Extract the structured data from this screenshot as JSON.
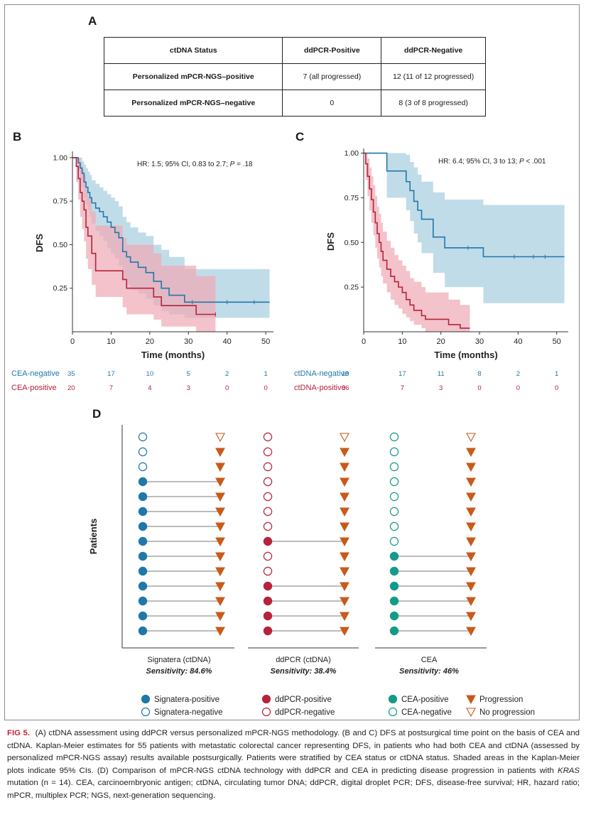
{
  "panels": {
    "a": "A",
    "b": "B",
    "c": "C",
    "d": "D"
  },
  "table": {
    "headers": [
      "ctDNA Status",
      "ddPCR-Positive",
      "ddPCR-Negative"
    ],
    "rows": [
      [
        "Personalized mPCR-NGS–positive",
        "7 (all progressed)",
        "12 (11 of 12 progressed)"
      ],
      [
        "Personalized mPCR-NGS–negative",
        "0",
        "8 (3 of 8 progressed)"
      ]
    ]
  },
  "colors": {
    "blue": "#1f78a8",
    "red": "#b8223a",
    "teal": "#159a8a",
    "blue_band": "#a9cfe0",
    "red_band": "#eeaab5",
    "orange": "#c85a1a"
  },
  "chart_data": [
    {
      "type": "line",
      "title": "",
      "annotation": "HR: 1.5; 95% CI, 0.83 to 2.7; P = .18",
      "annotation_prefix": "HR: 1.5; 95% CI, 0.83 to 2.7; ",
      "annotation_p": "P",
      "annotation_suffix": " = .18",
      "xlabel": "Time (months)",
      "ylabel": "DFS",
      "xlim": [
        0,
        52
      ],
      "ylim": [
        0,
        1.02
      ],
      "xticks": [
        0,
        10,
        20,
        30,
        40,
        50
      ],
      "yticks": [
        0.25,
        0.5,
        0.75,
        1.0
      ],
      "ytick_labels": [
        "0.25",
        "0.50",
        "0.75",
        "1.00"
      ],
      "series": [
        {
          "name": "CEA-negative",
          "color": "#1f78a8",
          "x": [
            0,
            1.5,
            2,
            2.5,
            3,
            3.5,
            4,
            4.5,
            5,
            6,
            7,
            8,
            9,
            10,
            11,
            12,
            13,
            14,
            15,
            17,
            19,
            21,
            23,
            25,
            29,
            51
          ],
          "y": [
            1.0,
            0.97,
            0.94,
            0.91,
            0.86,
            0.83,
            0.8,
            0.77,
            0.74,
            0.71,
            0.69,
            0.66,
            0.63,
            0.6,
            0.57,
            0.54,
            0.46,
            0.43,
            0.4,
            0.37,
            0.34,
            0.29,
            0.25,
            0.21,
            0.17,
            0.17
          ],
          "lower": [
            1.0,
            0.92,
            0.87,
            0.83,
            0.77,
            0.73,
            0.7,
            0.66,
            0.62,
            0.58,
            0.55,
            0.52,
            0.48,
            0.45,
            0.42,
            0.38,
            0.3,
            0.27,
            0.24,
            0.22,
            0.19,
            0.15,
            0.12,
            0.1,
            0.08,
            0.08
          ],
          "upper": [
            1.0,
            1.0,
            1.0,
            0.98,
            0.96,
            0.94,
            0.92,
            0.9,
            0.87,
            0.85,
            0.83,
            0.81,
            0.79,
            0.77,
            0.75,
            0.72,
            0.66,
            0.63,
            0.6,
            0.57,
            0.55,
            0.5,
            0.47,
            0.43,
            0.36,
            0.36
          ],
          "censor_x": [
            31,
            40,
            47
          ]
        },
        {
          "name": "CEA-positive",
          "color": "#b8223a",
          "x": [
            0,
            1,
            1.5,
            2,
            2.5,
            3,
            3.5,
            4,
            5,
            6,
            11,
            13,
            14,
            15,
            20,
            21,
            23,
            25,
            27,
            32,
            37
          ],
          "y": [
            1.0,
            0.95,
            0.88,
            0.8,
            0.75,
            0.7,
            0.6,
            0.55,
            0.45,
            0.35,
            0.35,
            0.3,
            0.25,
            0.25,
            0.25,
            0.2,
            0.15,
            0.15,
            0.15,
            0.1,
            0.1
          ],
          "lower": [
            1.0,
            0.86,
            0.76,
            0.66,
            0.59,
            0.52,
            0.42,
            0.36,
            0.27,
            0.2,
            0.2,
            0.14,
            0.1,
            0.1,
            0.1,
            0.07,
            0.03,
            0.03,
            0.03,
            0.0,
            0.0
          ],
          "upper": [
            1.0,
            1.0,
            1.0,
            0.97,
            0.93,
            0.9,
            0.82,
            0.77,
            0.69,
            0.61,
            0.61,
            0.54,
            0.5,
            0.5,
            0.5,
            0.45,
            0.38,
            0.38,
            0.38,
            0.32,
            0.32
          ],
          "censor_x": [
            37
          ]
        }
      ],
      "risk_table": {
        "columns": [
          "0",
          "10",
          "20",
          "30",
          "40",
          "50"
        ],
        "rows": [
          {
            "label": "CEA-negative",
            "color": "#1f78a8",
            "values": [
              "35",
              "17",
              "10",
              "5",
              "2",
              "1"
            ]
          },
          {
            "label": "CEA-positive",
            "color": "#b8223a",
            "values": [
              "20",
              "7",
              "4",
              "3",
              "0",
              "0"
            ]
          }
        ]
      }
    },
    {
      "type": "line",
      "title": "",
      "annotation": "HR: 6.4; 95% CI, 3 to 13; P < .001",
      "annotation_prefix": "HR: 6.4; 95% CI, 3 to 13; ",
      "annotation_p": "P",
      "annotation_suffix": " < .001",
      "xlabel": "Time (months)",
      "ylabel": "DFS",
      "xlim": [
        0,
        53
      ],
      "ylim": [
        0,
        1.01
      ],
      "xticks": [
        0,
        10,
        20,
        30,
        40,
        50
      ],
      "yticks": [
        0.25,
        0.5,
        0.75,
        1.0
      ],
      "ytick_labels": [
        "0.25",
        "0.50",
        "0.75",
        "1.00"
      ],
      "series": [
        {
          "name": "ctDNA-negative",
          "color": "#1f78a8",
          "x": [
            0,
            6,
            11,
            12,
            13,
            14,
            15,
            18,
            21,
            31,
            52
          ],
          "y": [
            1.0,
            0.9,
            0.84,
            0.79,
            0.73,
            0.68,
            0.63,
            0.53,
            0.47,
            0.42,
            0.42
          ],
          "lower": [
            1.0,
            0.75,
            0.68,
            0.62,
            0.55,
            0.5,
            0.44,
            0.33,
            0.25,
            0.16,
            0.16
          ],
          "upper": [
            1.0,
            1.0,
            0.99,
            0.95,
            0.92,
            0.88,
            0.84,
            0.78,
            0.74,
            0.71,
            0.71
          ],
          "censor_x": [
            27,
            39,
            44,
            47
          ]
        },
        {
          "name": "ctDNA-positive",
          "color": "#b8223a",
          "x": [
            0,
            0.5,
            1,
            1.5,
            2,
            2.5,
            3,
            3.5,
            4,
            4.5,
            5,
            6,
            7,
            8,
            9,
            10,
            11,
            12,
            13,
            15,
            16,
            22,
            25,
            27.5
          ],
          "y": [
            1.0,
            0.94,
            0.87,
            0.8,
            0.74,
            0.67,
            0.61,
            0.55,
            0.5,
            0.45,
            0.4,
            0.35,
            0.31,
            0.28,
            0.25,
            0.22,
            0.18,
            0.15,
            0.12,
            0.09,
            0.07,
            0.04,
            0.02,
            0.02
          ],
          "lower": [
            1.0,
            0.85,
            0.76,
            0.68,
            0.61,
            0.54,
            0.47,
            0.41,
            0.36,
            0.31,
            0.27,
            0.22,
            0.18,
            0.15,
            0.13,
            0.1,
            0.08,
            0.06,
            0.04,
            0.02,
            0.0,
            0.0,
            0.0,
            0.0
          ],
          "upper": [
            1.0,
            1.0,
            0.97,
            0.92,
            0.87,
            0.82,
            0.76,
            0.7,
            0.66,
            0.61,
            0.56,
            0.51,
            0.47,
            0.43,
            0.4,
            0.37,
            0.34,
            0.3,
            0.28,
            0.25,
            0.22,
            0.18,
            0.15,
            0.15
          ],
          "censor_x": []
        }
      ],
      "risk_table": {
        "columns": [
          "0",
          "10",
          "20",
          "30",
          "40",
          "50"
        ],
        "rows": [
          {
            "label": "ctDNA-negative",
            "color": "#1f78a8",
            "values": [
              "19",
              "17",
              "11",
              "8",
              "2",
              "1"
            ]
          },
          {
            "label": "ctDNA-positive",
            "color": "#b8223a",
            "values": [
              "36",
              "7",
              "3",
              "0",
              "0",
              "0"
            ]
          }
        ]
      }
    },
    {
      "type": "scatter",
      "ylabel": "Patients",
      "n_patients": 14,
      "groups": [
        {
          "name": "Signatera (ctDNA)",
          "sensitivity_label": "Sensitivity: 84.6%",
          "color": "#1f78a8",
          "status": [
            0,
            0,
            0,
            1,
            1,
            1,
            1,
            1,
            1,
            1,
            1,
            1,
            1,
            1
          ]
        },
        {
          "name": "ddPCR (ctDNA)",
          "sensitivity_label": "Sensitivity: 38.4%",
          "color": "#b8223a",
          "status": [
            0,
            0,
            0,
            0,
            0,
            0,
            0,
            1,
            0,
            0,
            1,
            1,
            1,
            1
          ]
        },
        {
          "name": "CEA",
          "sensitivity_label": "Sensitivity: 46%",
          "color": "#159a8a",
          "status": [
            0,
            0,
            0,
            0,
            0,
            0,
            0,
            0,
            1,
            1,
            1,
            1,
            1,
            1
          ]
        }
      ],
      "progression": [
        0,
        1,
        1,
        1,
        1,
        1,
        1,
        1,
        1,
        1,
        1,
        1,
        1,
        1
      ],
      "legend": [
        [
          "Signatera-positive",
          "ddPCR-positive",
          "CEA-positive",
          "Progression"
        ],
        [
          "Signatera-negative",
          "ddPCR-negative",
          "CEA-negative",
          "No progression"
        ]
      ]
    }
  ],
  "caption": {
    "fig_label": "FIG 5.",
    "text_1": "(A) ctDNA assessment using ddPCR versus personalized mPCR-NGS methodology. (B and C) DFS at postsurgical time point on the basis of CEA and ctDNA. Kaplan-Meier estimates for 55 patients with metastatic colorectal cancer representing DFS, in patients who had both CEA and ctDNA (assessed by personalized mPCR-NGS assay) results available postsurgically. Patients were stratified by CEA status or ctDNA status. Shaded areas in the Kaplan-Meier plots indicate 95% CIs. (D) Comparison of mPCR-NGS ctDNA technology with ddPCR and CEA in predicting disease progression in patients with ",
    "gene": "KRAS",
    "text_2": " mutation (n = 14). CEA, carcinoembryonic antigen; ctDNA, circulating tumor DNA; ddPCR, digital droplet PCR; DFS, disease-free survival; HR, hazard ratio; mPCR, multiplex PCR; NGS, next-generation sequencing."
  }
}
